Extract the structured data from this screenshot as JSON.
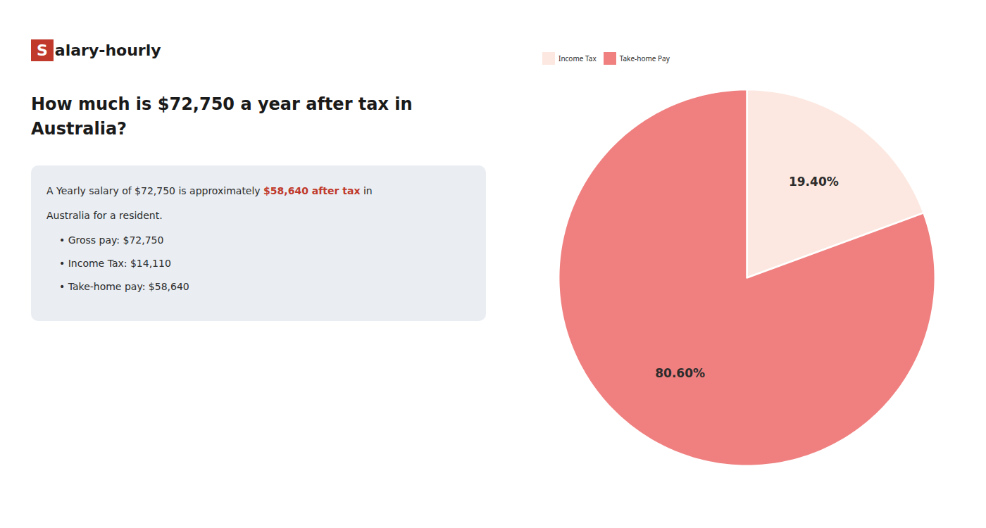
{
  "chart_data": {
    "type": "pie",
    "title": "How much is $72,750 a year after tax in\nAustralia?",
    "categories": [
      "Income Tax",
      "Take-home Pay"
    ],
    "values": [
      19.4,
      80.6
    ],
    "value_labels": [
      "19.40%",
      "80.60%"
    ],
    "colors": [
      "#fce8e0",
      "#f08080"
    ],
    "data_labels": true,
    "legend": "top",
    "annotations": [
      [
        {
          "text": "S",
          "color": "#c0392b"
        },
        {
          "text": "alary-hourly"
        }
      ],
      [
        {
          "text": "A Yearly salary of $72,750 is approximately "
        },
        {
          "text": "$58,640 after tax",
          "color": "#c0392b"
        },
        {
          "text": " in"
        }
      ],
      [
        {
          "text": "Australia for a resident."
        }
      ],
      [
        {
          "text": "•  Gross pay: $72,750"
        }
      ],
      [
        {
          "text": "•  Income Tax: $14,110"
        }
      ],
      [
        {
          "text": "•  Take-home pay: $58,640"
        }
      ]
    ]
  }
}
